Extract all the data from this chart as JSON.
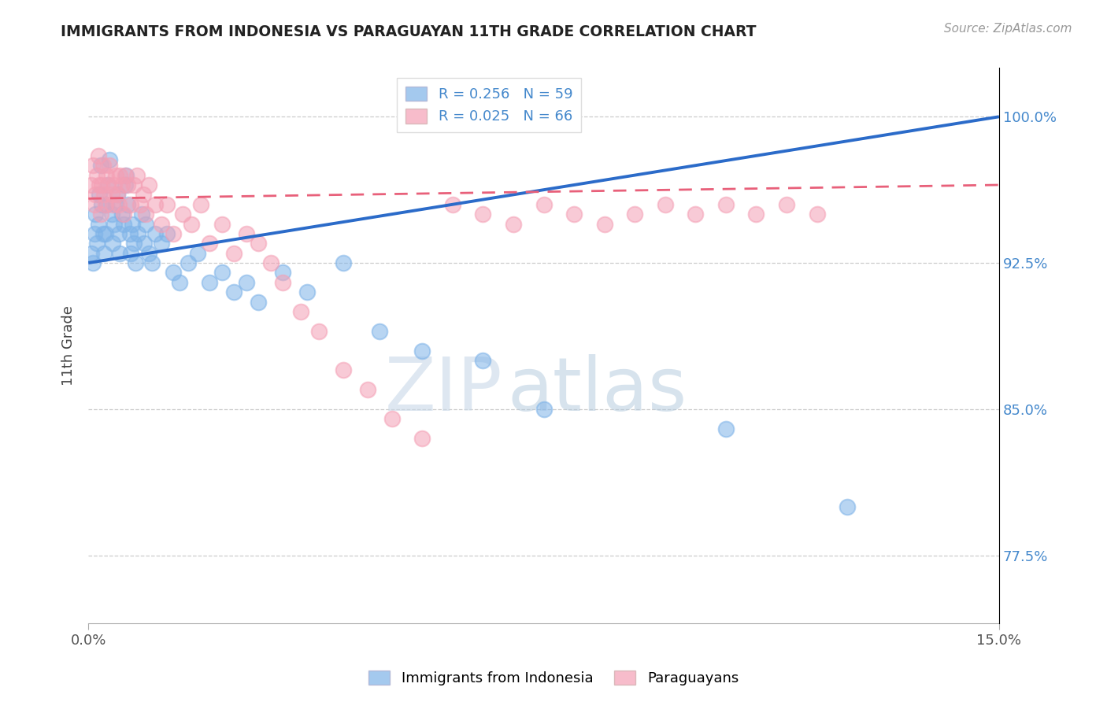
{
  "title": "IMMIGRANTS FROM INDONESIA VS PARAGUAYAN 11TH GRADE CORRELATION CHART",
  "source": "Source: ZipAtlas.com",
  "ylabel": "11th Grade",
  "xlim": [
    0.0,
    15.0
  ],
  "ylim": [
    74.0,
    102.5
  ],
  "yticks": [
    77.5,
    85.0,
    92.5,
    100.0
  ],
  "ytick_labels": [
    "77.5%",
    "85.0%",
    "92.5%",
    "100.0%"
  ],
  "legend_blue_r": "R = 0.256",
  "legend_blue_n": "N = 59",
  "legend_pink_r": "R = 0.025",
  "legend_pink_n": "N = 66",
  "legend_blue_label": "Immigrants from Indonesia",
  "legend_pink_label": "Paraguayans",
  "watermark_zip": "ZIP",
  "watermark_atlas": "atlas",
  "blue_color": "#7EB3E8",
  "pink_color": "#F4A0B5",
  "blue_line_color": "#2B6BC9",
  "pink_line_color": "#E8607A",
  "title_color": "#222222",
  "axis_label_color": "#4488CC",
  "blue_scatter_x": [
    0.05,
    0.08,
    0.1,
    0.12,
    0.14,
    0.16,
    0.18,
    0.2,
    0.22,
    0.24,
    0.26,
    0.28,
    0.3,
    0.32,
    0.35,
    0.38,
    0.4,
    0.42,
    0.45,
    0.48,
    0.5,
    0.52,
    0.55,
    0.58,
    0.6,
    0.62,
    0.65,
    0.68,
    0.7,
    0.72,
    0.75,
    0.78,
    0.82,
    0.88,
    0.92,
    0.95,
    1.0,
    1.05,
    1.1,
    1.2,
    1.3,
    1.4,
    1.5,
    1.65,
    1.8,
    2.0,
    2.2,
    2.4,
    2.6,
    2.8,
    3.2,
    3.6,
    4.2,
    4.8,
    5.5,
    6.5,
    7.5,
    10.5,
    12.5
  ],
  "blue_scatter_y": [
    93.0,
    92.5,
    94.0,
    95.0,
    93.5,
    94.5,
    96.0,
    97.5,
    95.5,
    94.0,
    93.0,
    94.0,
    95.5,
    96.5,
    97.8,
    95.0,
    93.5,
    94.5,
    95.5,
    96.0,
    94.0,
    93.0,
    95.0,
    94.5,
    96.5,
    97.0,
    95.5,
    94.0,
    93.0,
    94.5,
    93.5,
    92.5,
    94.0,
    95.0,
    93.5,
    94.5,
    93.0,
    92.5,
    94.0,
    93.5,
    94.0,
    92.0,
    91.5,
    92.5,
    93.0,
    91.5,
    92.0,
    91.0,
    91.5,
    90.5,
    92.0,
    91.0,
    92.5,
    89.0,
    88.0,
    87.5,
    85.0,
    84.0,
    80.0
  ],
  "pink_scatter_x": [
    0.05,
    0.08,
    0.1,
    0.12,
    0.14,
    0.16,
    0.18,
    0.2,
    0.22,
    0.24,
    0.26,
    0.28,
    0.3,
    0.32,
    0.35,
    0.38,
    0.4,
    0.42,
    0.45,
    0.48,
    0.5,
    0.52,
    0.55,
    0.58,
    0.6,
    0.65,
    0.7,
    0.75,
    0.8,
    0.85,
    0.9,
    0.95,
    1.0,
    1.1,
    1.2,
    1.3,
    1.4,
    1.55,
    1.7,
    1.85,
    2.0,
    2.2,
    2.4,
    2.6,
    2.8,
    3.0,
    3.2,
    3.5,
    3.8,
    4.2,
    4.6,
    5.0,
    5.5,
    6.0,
    6.5,
    7.0,
    7.5,
    8.0,
    8.5,
    9.0,
    9.5,
    10.0,
    10.5,
    11.0,
    11.5,
    12.0
  ],
  "pink_scatter_y": [
    96.5,
    97.5,
    95.5,
    96.0,
    97.0,
    98.0,
    96.5,
    95.0,
    96.5,
    97.5,
    96.0,
    95.5,
    97.0,
    96.5,
    97.5,
    96.0,
    95.5,
    96.5,
    97.0,
    96.0,
    95.5,
    97.0,
    96.5,
    95.0,
    97.0,
    96.5,
    95.5,
    96.5,
    97.0,
    95.5,
    96.0,
    95.0,
    96.5,
    95.5,
    94.5,
    95.5,
    94.0,
    95.0,
    94.5,
    95.5,
    93.5,
    94.5,
    93.0,
    94.0,
    93.5,
    92.5,
    91.5,
    90.0,
    89.0,
    87.0,
    86.0,
    84.5,
    83.5,
    95.5,
    95.0,
    94.5,
    95.5,
    95.0,
    94.5,
    95.0,
    95.5,
    95.0,
    95.5,
    95.0,
    95.5,
    95.0
  ],
  "blue_trend_x": [
    0.0,
    15.0
  ],
  "blue_trend_y": [
    92.5,
    100.0
  ],
  "pink_trend_x": [
    0.0,
    15.0
  ],
  "pink_trend_y": [
    95.8,
    96.5
  ]
}
